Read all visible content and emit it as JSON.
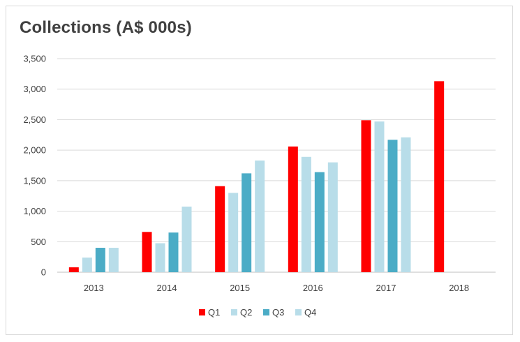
{
  "chart_data": {
    "type": "bar",
    "title": "Collections (A$ 000s)",
    "categories": [
      "2013",
      "2014",
      "2015",
      "2016",
      "2017",
      "2018"
    ],
    "yticks": [
      "0",
      "500",
      "1,000",
      "1,500",
      "2,000",
      "2,500",
      "3,000",
      "3,500"
    ],
    "ylim": [
      0,
      3500
    ],
    "grid": true,
    "legend_position": "bottom",
    "series": [
      {
        "name": "Q1",
        "color": "#ff0000",
        "values": [
          80,
          660,
          1410,
          2060,
          2490,
          3130
        ]
      },
      {
        "name": "Q2",
        "color": "#b8dde9",
        "values": [
          240,
          475,
          1300,
          1890,
          2470,
          null
        ]
      },
      {
        "name": "Q3",
        "color": "#4bacc6",
        "values": [
          400,
          650,
          1620,
          1640,
          2170,
          null
        ]
      },
      {
        "name": "Q4",
        "color": "#b8dde9",
        "values": [
          400,
          1075,
          1830,
          1800,
          2210,
          null
        ]
      }
    ]
  }
}
